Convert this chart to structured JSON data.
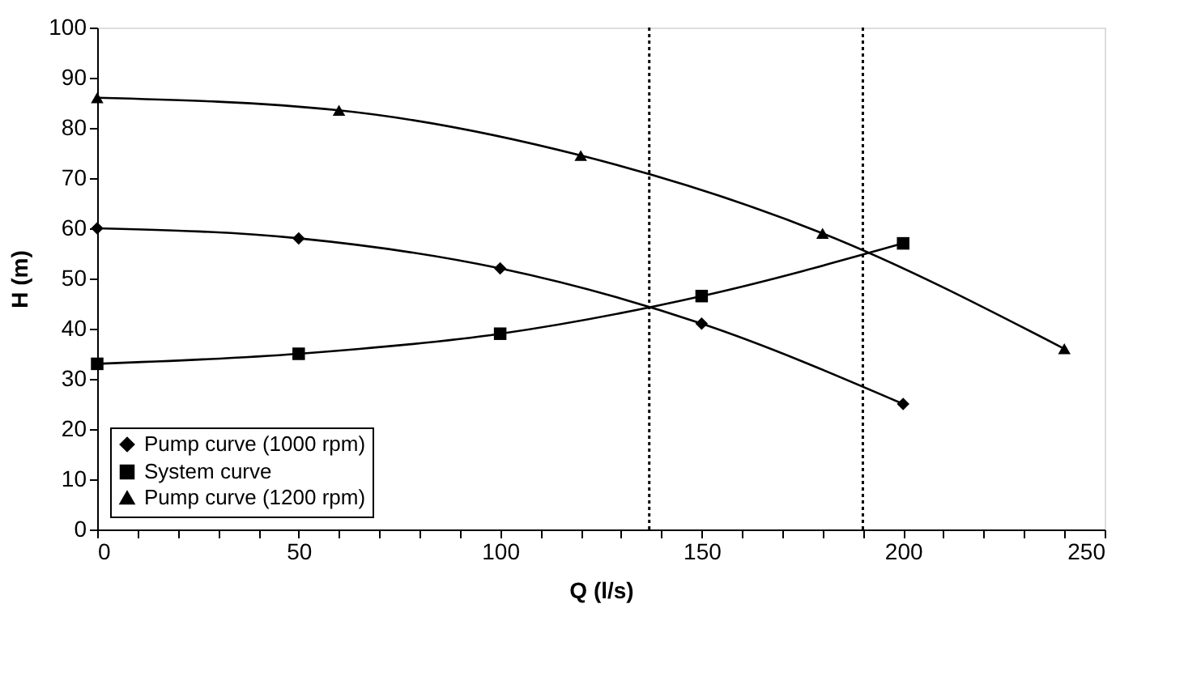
{
  "chart_data": {
    "type": "line",
    "xlabel": "Q (l/s)",
    "ylabel": "H (m)",
    "xlim": [
      0,
      250
    ],
    "ylim": [
      0,
      100
    ],
    "xticks": [
      0,
      {
        "value": 10,
        "label": null
      },
      {
        "value": 20,
        "label": null
      },
      {
        "value": 30,
        "label": null
      },
      {
        "value": 40,
        "label": null
      },
      50,
      {
        "value": 60,
        "label": null
      },
      {
        "value": 70,
        "label": null
      },
      {
        "value": 80,
        "label": null
      },
      {
        "value": 90,
        "label": null
      },
      100,
      {
        "value": 110,
        "label": null
      },
      {
        "value": 120,
        "label": null
      },
      {
        "value": 130,
        "label": null
      },
      {
        "value": 140,
        "label": null
      },
      150,
      {
        "value": 160,
        "label": null
      },
      {
        "value": 170,
        "label": null
      },
      {
        "value": 180,
        "label": null
      },
      {
        "value": 190,
        "label": null
      },
      200,
      {
        "value": 210,
        "label": null
      },
      {
        "value": 220,
        "label": null
      },
      {
        "value": 230,
        "label": null
      },
      {
        "value": 240,
        "label": null
      },
      250
    ],
    "yticks": [
      0,
      10,
      20,
      30,
      40,
      50,
      60,
      70,
      80,
      90,
      100
    ],
    "grid": false,
    "legend": "bottom left",
    "line_style": "solid",
    "series": [
      {
        "name": "Pump curve (1000 rpm)",
        "color": "#000000",
        "marker": "diamond",
        "x": [
          0,
          50,
          100,
          150,
          200
        ],
        "values": [
          60,
          58,
          52,
          41,
          25
        ]
      },
      {
        "name": "System curve",
        "color": "#000000",
        "marker": "square",
        "x": [
          0,
          50,
          100,
          150,
          200
        ],
        "values": [
          33,
          35,
          39,
          46.5,
          57
        ]
      },
      {
        "name": "Pump curve (1200 rpm)",
        "color": "#000000",
        "marker": "triangle",
        "x": [
          0,
          60,
          120,
          180,
          240
        ],
        "values": [
          86,
          83.5,
          74.5,
          59,
          36
        ]
      }
    ],
    "ref_lines": [
      {
        "axis": "x",
        "value": 137,
        "color": "#000000",
        "line_style": "dotted"
      },
      {
        "axis": "x",
        "value": 190,
        "color": "#000000",
        "line_style": "dotted"
      }
    ]
  }
}
